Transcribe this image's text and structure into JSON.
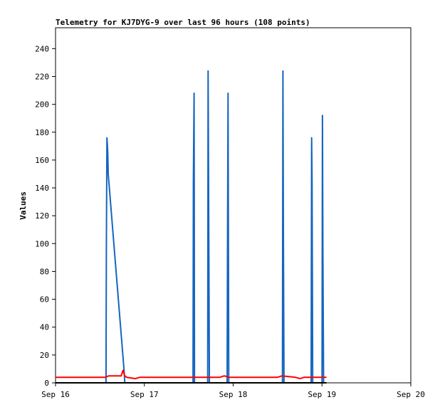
{
  "chart_data": {
    "type": "line",
    "title": "Telemetry for KJ7DYG-9 over last 96 hours (108 points)",
    "xlabel": "",
    "ylabel": "Values",
    "x_ticks": [
      "Sep 16",
      "Sep 17",
      "Sep 18",
      "Sep 19",
      "Sep 20"
    ],
    "xlim": [
      0,
      4
    ],
    "ylim": [
      0,
      255
    ],
    "y_ticks": [
      0,
      20,
      40,
      60,
      80,
      100,
      120,
      140,
      160,
      180,
      200,
      220,
      240
    ],
    "grid": false,
    "colors": {
      "blue": "#1565c0",
      "red": "#ff0000",
      "black": "#000000"
    },
    "series": [
      {
        "color": "#1565c0",
        "x": [
          0.568,
          0.572,
          0.579,
          0.583,
          0.588,
          0.593,
          0.77,
          0.78,
          1.548,
          1.552,
          1.56,
          1.565,
          1.713,
          1.718,
          1.725,
          1.732,
          1.932,
          1.937,
          1.942,
          1.95,
          2.555,
          2.56,
          2.565,
          2.572,
          2.878,
          2.883,
          2.888,
          2.895,
          3.0,
          3.005,
          3.01,
          3.018
        ],
        "y": [
          0,
          97,
          176,
          172,
          165,
          150,
          10,
          0,
          0,
          144,
          208,
          0,
          0,
          224,
          112,
          0,
          0,
          104,
          208,
          0,
          0,
          224,
          112,
          0,
          0,
          176,
          144,
          0,
          0,
          192,
          96,
          0
        ]
      },
      {
        "color": "#ff0000",
        "x": [
          0.0,
          0.56,
          0.6,
          0.74,
          0.76,
          0.78,
          0.8,
          0.9,
          0.95,
          1.0,
          1.5,
          1.85,
          1.9,
          1.95,
          2.0,
          2.5,
          2.55,
          2.7,
          2.75,
          2.8,
          2.9,
          3.0,
          3.05
        ],
        "y": [
          4,
          4,
          5,
          5,
          9,
          5,
          4,
          3,
          4,
          4,
          4,
          4,
          5,
          4,
          4,
          4,
          5,
          4,
          3,
          4,
          4,
          4,
          4
        ]
      },
      {
        "color": "#000000",
        "x": [
          0.0,
          3.05
        ],
        "y": [
          0,
          0
        ]
      }
    ]
  }
}
